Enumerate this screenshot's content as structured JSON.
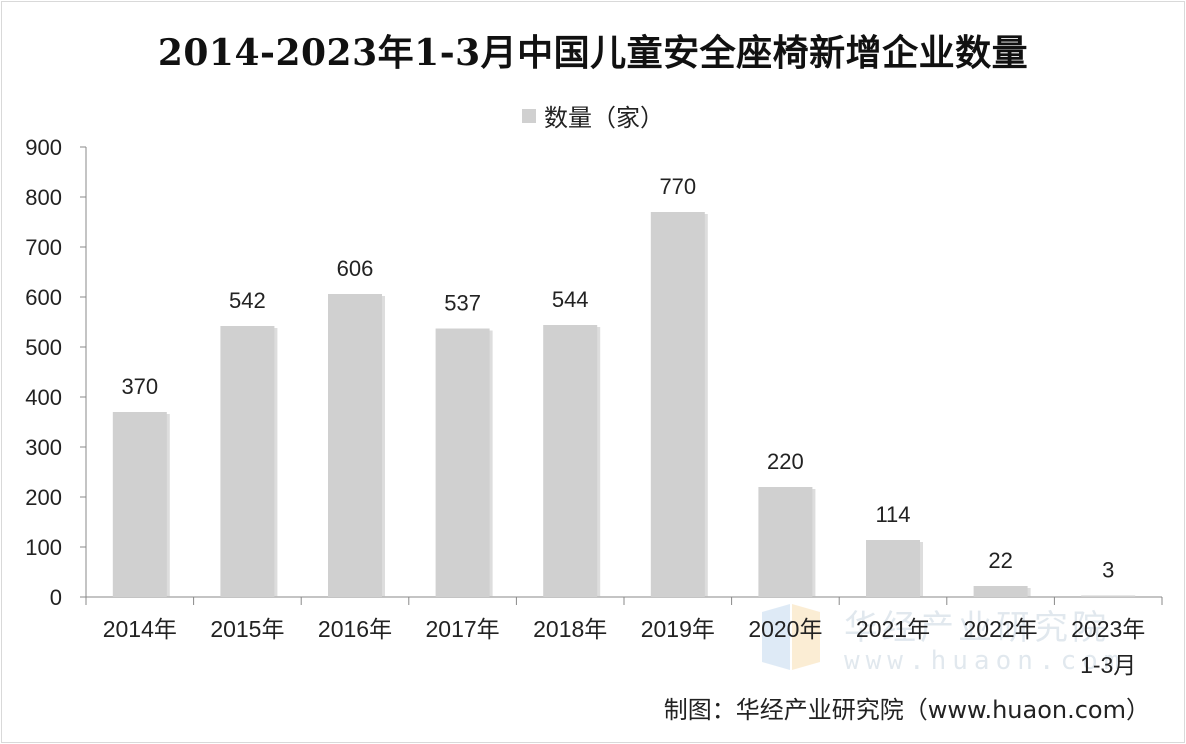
{
  "chart_data": {
    "type": "bar",
    "title": "2014-2023年1-3月中国儿童安全座椅新增企业数量",
    "categories": [
      "2014年",
      "2015年",
      "2016年",
      "2017年",
      "2018年",
      "2019年",
      "2020年",
      "2021年",
      "2022年",
      "2023年\n1-3月"
    ],
    "series": [
      {
        "name": "数量（家）",
        "values": [
          370,
          542,
          606,
          537,
          544,
          770,
          220,
          114,
          22,
          3
        ]
      }
    ],
    "ylim": [
      0,
      900
    ],
    "yticks": [
      0,
      100,
      200,
      300,
      400,
      500,
      600,
      700,
      800,
      900
    ],
    "grid": false,
    "legend_position": "top-center",
    "bar_color": "#d0d0d0"
  },
  "source": "制图：华经产业研究院（www.huaon.com）",
  "watermark": {
    "name": "华经产业研究院",
    "url": "www.huaon.com"
  }
}
